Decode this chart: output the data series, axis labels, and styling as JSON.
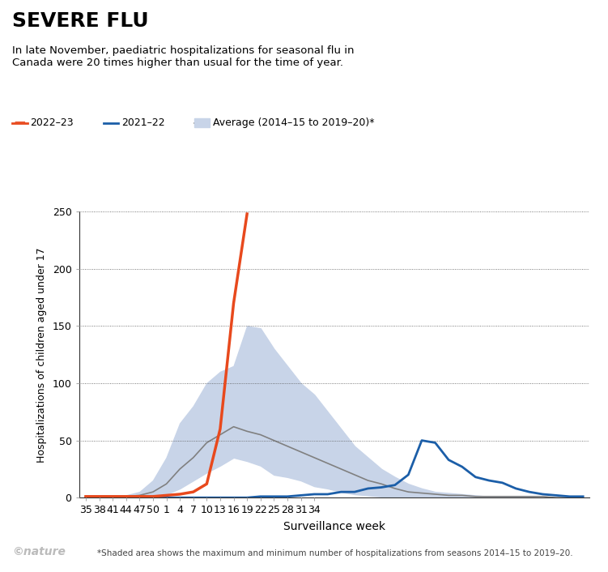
{
  "title": "SEVERE FLU",
  "subtitle": "In late November, paediatric hospitalizations for seasonal flu in\nCanada were 20 times higher than usual for the time of year.",
  "xlabel": "Surveillance week",
  "ylabel": "Hospitalizations of children aged under 17",
  "footnote": "*Shaded area shows the maximum and minimum number of hospitalizations from seasons 2014–15 to 2019–20.",
  "nature_credit": "©nature",
  "ylim": [
    0,
    250
  ],
  "yticks": [
    0,
    50,
    100,
    150,
    200,
    250
  ],
  "xtick_labels": [
    "35",
    "38",
    "41",
    "44",
    "47",
    "50",
    "1",
    "4",
    "7",
    "10",
    "13",
    "16",
    "19",
    "22",
    "25",
    "28",
    "31",
    "34"
  ],
  "legend_labels": [
    "2022–23",
    "2021–22",
    "Average (2014–15 to 2019–20)*"
  ],
  "legend_colors": [
    "#e8491d",
    "#1b5ea8",
    "#a0a0a0"
  ],
  "line_2022_x": [
    0,
    1,
    2,
    3,
    4,
    5,
    6,
    7,
    8,
    9,
    10,
    11,
    12,
    13,
    14,
    15,
    16,
    17,
    18,
    19,
    20,
    21,
    22,
    23,
    24,
    25,
    26,
    27,
    28,
    29,
    30,
    31,
    32,
    33,
    34,
    35,
    36,
    37
  ],
  "line_2022_y": [
    1,
    1,
    1,
    1,
    1,
    1,
    2,
    3,
    5,
    12,
    60,
    170,
    248,
    null,
    null,
    null,
    null,
    null,
    null,
    null,
    null,
    null,
    null,
    null,
    null,
    null,
    null,
    null,
    null,
    null,
    null,
    null,
    null,
    null,
    null,
    null,
    null,
    null
  ],
  "line_2021_x": [
    0,
    1,
    2,
    3,
    4,
    5,
    6,
    7,
    8,
    9,
    10,
    11,
    12,
    13,
    14,
    15,
    16,
    17,
    18,
    19,
    20,
    21,
    22,
    23,
    24,
    25,
    26,
    27,
    28,
    29,
    30,
    31,
    32,
    33,
    34,
    35,
    36,
    37
  ],
  "line_2021_y": [
    0,
    0,
    0,
    0,
    0,
    0,
    0,
    0,
    0,
    0,
    0,
    0,
    0,
    1,
    1,
    1,
    2,
    3,
    3,
    5,
    5,
    8,
    9,
    11,
    20,
    50,
    48,
    33,
    27,
    18,
    15,
    13,
    8,
    5,
    3,
    2,
    1,
    1
  ],
  "avg_x": [
    0,
    1,
    2,
    3,
    4,
    5,
    6,
    7,
    8,
    9,
    10,
    11,
    12,
    13,
    14,
    15,
    16,
    17,
    18,
    19,
    20,
    21,
    22,
    23,
    24,
    25,
    26,
    27,
    28,
    29,
    30,
    31,
    32,
    33,
    34,
    35,
    36,
    37
  ],
  "avg_mean": [
    1,
    1,
    1,
    1,
    2,
    5,
    12,
    25,
    35,
    48,
    55,
    62,
    58,
    55,
    50,
    45,
    40,
    35,
    30,
    25,
    20,
    15,
    12,
    8,
    5,
    4,
    3,
    2,
    2,
    1,
    1,
    1,
    1,
    1,
    1,
    0,
    0,
    0
  ],
  "avg_min": [
    0,
    0,
    0,
    0,
    0,
    1,
    3,
    8,
    15,
    22,
    28,
    35,
    32,
    28,
    20,
    18,
    15,
    10,
    8,
    5,
    3,
    2,
    1,
    1,
    0,
    0,
    0,
    0,
    0,
    0,
    0,
    0,
    0,
    0,
    0,
    0,
    0,
    0
  ],
  "avg_max": [
    2,
    2,
    2,
    2,
    5,
    15,
    35,
    65,
    80,
    100,
    110,
    115,
    150,
    148,
    130,
    115,
    100,
    90,
    75,
    60,
    45,
    35,
    25,
    18,
    12,
    8,
    5,
    4,
    3,
    2,
    1,
    1,
    1,
    1,
    0,
    0,
    0,
    0
  ],
  "orange_color": "#e8491d",
  "blue_color": "#1b5ea8",
  "gray_color": "#808080",
  "shade_color": "#c8d4e8",
  "background_color": "#ffffff"
}
